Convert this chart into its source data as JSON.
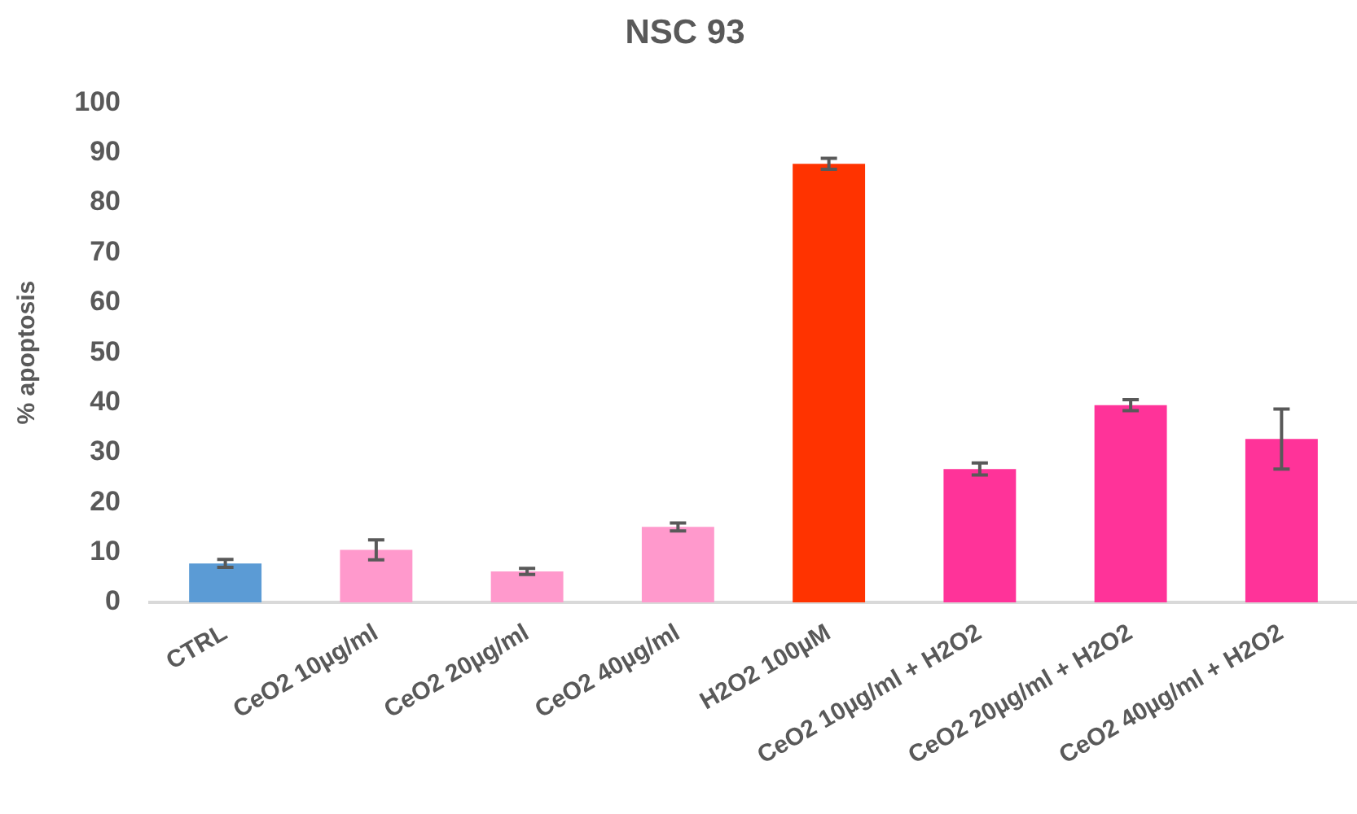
{
  "chart_data": {
    "type": "bar",
    "title": "NSC 93",
    "ylabel": "% apoptosis",
    "categories": [
      "CTRL",
      "CeO2 10µg/ml",
      "CeO2 20µg/ml",
      "CeO2 40µg/ml",
      "H2O2 100µM",
      "CeO2 10µg/ml + H2O2",
      "CeO2 20µg/ml + H2O2",
      "CeO2 40µg/ml + H2O2"
    ],
    "values": [
      7.8,
      10.5,
      6.2,
      15.1,
      87.8,
      26.7,
      39.5,
      32.7
    ],
    "errors": [
      0.8,
      2,
      0.6,
      0.8,
      1.1,
      1.2,
      1.1,
      6
    ],
    "colors": [
      "#5b9bd5",
      "#ff99cc",
      "#ff99cc",
      "#ff99cc",
      "#ff3300",
      "#ff3399",
      "#ff3399",
      "#ff3399"
    ],
    "ylim": [
      0,
      100
    ],
    "yticks": [
      0,
      10,
      20,
      30,
      40,
      50,
      60,
      70,
      80,
      90,
      100
    ]
  }
}
